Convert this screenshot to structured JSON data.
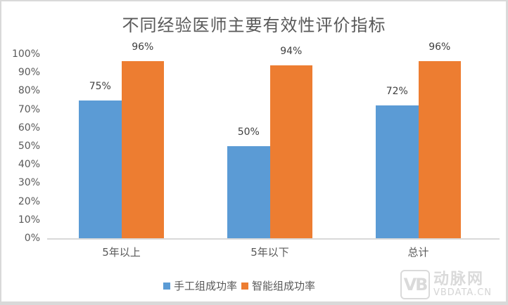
{
  "chart_data": {
    "type": "bar",
    "title": "不同经验医师主要有效性评价指标",
    "xlabel": "",
    "ylabel": "",
    "categories": [
      "5年以上",
      "5年以下",
      "总计"
    ],
    "series": [
      {
        "name": "手工组成功率",
        "color": "#5B9BD5",
        "values": [
          75,
          50,
          72
        ],
        "labels": [
          "75%",
          "50%",
          "72%"
        ]
      },
      {
        "name": "智能组成功率",
        "color": "#ED7D31",
        "values": [
          96,
          94,
          96
        ],
        "labels": [
          "96%",
          "94%",
          "96%"
        ]
      }
    ],
    "ylim": [
      0,
      100
    ],
    "yticks": [
      "0%",
      "10%",
      "20%",
      "30%",
      "40%",
      "50%",
      "60%",
      "70%",
      "80%",
      "90%",
      "100%"
    ],
    "grid": false,
    "legend_position": "bottom"
  },
  "watermark": {
    "logo": "VB",
    "cn": "动脉网",
    "en": "VBDATA.CN"
  }
}
